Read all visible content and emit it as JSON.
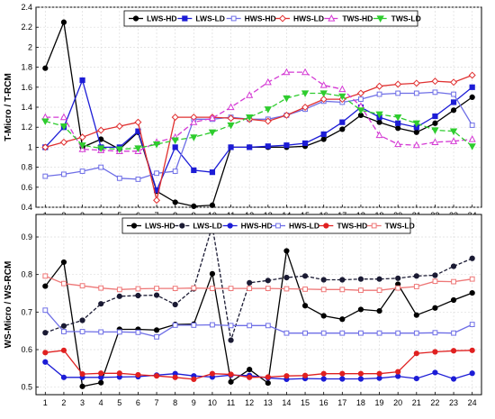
{
  "chart_data": [
    {
      "type": "line",
      "ylabel": "T-Micro / T-RCM",
      "x": [
        1,
        2,
        3,
        4,
        5,
        6,
        7,
        8,
        9,
        10,
        11,
        12,
        13,
        14,
        15,
        16,
        17,
        18,
        19,
        20,
        21,
        22,
        23,
        24
      ],
      "ylim": [
        0.4,
        2.4
      ],
      "yticks": [
        "0.4",
        "0.6",
        "0.8",
        "1",
        "1.2",
        "1.4",
        "1.6",
        "1.8",
        "2",
        "2.2",
        "2.4"
      ],
      "legend_position": "top-center",
      "series": [
        {
          "name": "LWS-HD",
          "color": "#000000",
          "dash": "",
          "marker": "dot",
          "values": [
            1.79,
            2.25,
            1.0,
            1.08,
            0.98,
            1.15,
            0.56,
            0.45,
            0.41,
            0.42,
            1.0,
            1.0,
            1.0,
            1.0,
            1.01,
            1.08,
            1.18,
            1.32,
            1.25,
            1.19,
            1.15,
            1.24,
            1.37,
            1.5
          ]
        },
        {
          "name": "LWS-LD",
          "color": "#1c1cd6",
          "dash": "",
          "marker": "square",
          "values": [
            1.0,
            1.2,
            1.67,
            1.0,
            1.0,
            1.16,
            0.57,
            1.0,
            0.77,
            0.75,
            1.0,
            1.0,
            1.01,
            1.02,
            1.04,
            1.13,
            1.25,
            1.4,
            1.3,
            1.24,
            1.2,
            1.31,
            1.45,
            1.6
          ]
        },
        {
          "name": "HWS-HD",
          "color": "#6e6ee6",
          "dash": "",
          "marker": "open-square",
          "values": [
            0.71,
            0.73,
            0.76,
            0.8,
            0.69,
            0.68,
            0.74,
            0.76,
            1.28,
            1.28,
            1.3,
            1.28,
            1.28,
            1.32,
            1.38,
            1.46,
            1.45,
            1.48,
            1.53,
            1.54,
            1.54,
            1.55,
            1.53,
            1.22
          ]
        },
        {
          "name": "HWS-LD",
          "color": "#e03030",
          "dash": "",
          "marker": "diamond",
          "values": [
            1.0,
            1.05,
            1.1,
            1.17,
            1.21,
            1.25,
            0.47,
            1.3,
            1.3,
            1.3,
            1.29,
            1.28,
            1.26,
            1.32,
            1.4,
            1.48,
            1.48,
            1.54,
            1.61,
            1.63,
            1.64,
            1.66,
            1.65,
            1.72
          ]
        },
        {
          "name": "TWS-HD",
          "color": "#d43ad4",
          "dash": "6 3",
          "marker": "triangle-up",
          "values": [
            1.3,
            1.3,
            0.98,
            0.97,
            0.96,
            0.96,
            1.05,
            1.1,
            1.25,
            1.29,
            1.4,
            1.52,
            1.65,
            1.75,
            1.75,
            1.62,
            1.58,
            1.41,
            1.12,
            1.03,
            1.02,
            1.05,
            1.06,
            1.08
          ]
        },
        {
          "name": "TWS-LD",
          "color": "#2ecc2e",
          "dash": "6 3",
          "marker": "triangle-down",
          "values": [
            1.26,
            1.21,
            1.02,
            0.99,
            0.98,
            0.99,
            1.03,
            1.07,
            1.1,
            1.15,
            1.22,
            1.3,
            1.38,
            1.49,
            1.54,
            1.54,
            1.51,
            1.37,
            1.33,
            1.3,
            1.24,
            1.17,
            1.16,
            1.01
          ]
        }
      ]
    },
    {
      "type": "line",
      "ylabel": "WS-Micro / WS-RCM",
      "x": [
        1,
        2,
        3,
        4,
        5,
        6,
        7,
        8,
        9,
        10,
        11,
        12,
        13,
        14,
        15,
        16,
        17,
        18,
        19,
        20,
        21,
        22,
        23,
        24
      ],
      "ylim": [
        0.48,
        0.96
      ],
      "yticks": [
        "0.5",
        "0.6",
        "0.7",
        "0.8",
        "0.9"
      ],
      "legend_position": "top-center",
      "series": [
        {
          "name": "LWS-HD",
          "color": "#000000",
          "dash": "",
          "marker": "dot",
          "values": [
            0.769,
            0.833,
            0.502,
            0.512,
            0.654,
            0.654,
            0.652,
            0.667,
            0.668,
            0.802,
            0.514,
            0.547,
            0.511,
            0.863,
            0.717,
            0.69,
            0.681,
            0.707,
            0.703,
            0.774,
            0.692,
            0.711,
            0.732,
            0.751
          ]
        },
        {
          "name": "LWS-LD",
          "color": "#1a1a33",
          "dash": "4 2",
          "marker": "dot",
          "values": [
            0.645,
            0.663,
            0.678,
            0.722,
            0.742,
            0.744,
            0.745,
            0.72,
            0.762,
            0.93,
            0.625,
            0.778,
            0.784,
            0.792,
            0.796,
            0.786,
            0.786,
            0.788,
            0.788,
            0.79,
            0.796,
            0.798,
            0.822,
            0.843
          ]
        },
        {
          "name": "HWS-HD",
          "color": "#1c1cd6",
          "dash": "",
          "marker": "dot",
          "values": [
            0.567,
            0.526,
            0.526,
            0.526,
            0.527,
            0.528,
            0.532,
            0.536,
            0.53,
            0.527,
            0.532,
            0.531,
            0.525,
            0.521,
            0.523,
            0.522,
            0.522,
            0.522,
            0.524,
            0.529,
            0.523,
            0.539,
            0.522,
            0.537
          ]
        },
        {
          "name": "HWS-LD",
          "color": "#6e6ee6",
          "dash": "",
          "marker": "open-square",
          "values": [
            0.705,
            0.648,
            0.648,
            0.647,
            0.647,
            0.646,
            0.634,
            0.665,
            0.665,
            0.666,
            0.664,
            0.664,
            0.664,
            0.644,
            0.644,
            0.644,
            0.644,
            0.644,
            0.644,
            0.644,
            0.644,
            0.645,
            0.644,
            0.667
          ]
        },
        {
          "name": "TWS-HD",
          "color": "#e02020",
          "dash": "",
          "marker": "dot",
          "values": [
            0.592,
            0.598,
            0.535,
            0.537,
            0.537,
            0.533,
            0.53,
            0.526,
            0.521,
            0.536,
            0.534,
            0.526,
            0.527,
            0.53,
            0.531,
            0.536,
            0.536,
            0.536,
            0.536,
            0.541,
            0.59,
            0.594,
            0.597,
            0.598
          ]
        },
        {
          "name": "TWS-LD",
          "color": "#ee7777",
          "dash": "",
          "marker": "open-square",
          "values": [
            0.796,
            0.776,
            0.77,
            0.764,
            0.76,
            0.762,
            0.763,
            0.763,
            0.764,
            0.763,
            0.763,
            0.763,
            0.763,
            0.762,
            0.761,
            0.76,
            0.76,
            0.758,
            0.758,
            0.764,
            0.768,
            0.782,
            0.781,
            0.788
          ]
        }
      ]
    }
  ]
}
